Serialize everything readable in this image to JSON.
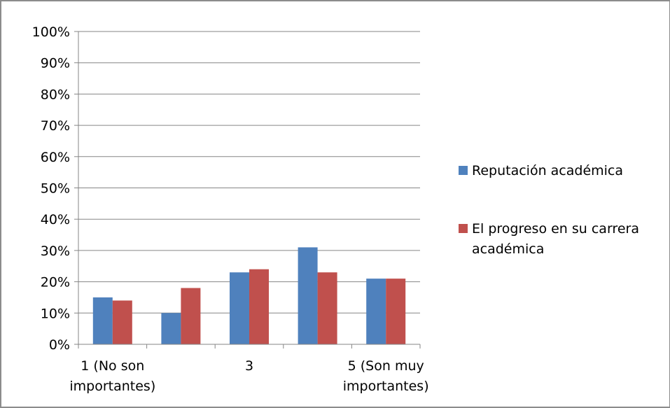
{
  "chart_data": {
    "type": "bar",
    "title": "",
    "xlabel": "",
    "ylabel": "",
    "ylim": [
      0,
      100
    ],
    "yticks": [
      0,
      10,
      20,
      30,
      40,
      50,
      60,
      70,
      80,
      90,
      100
    ],
    "ytick_labels": [
      "0%",
      "10%",
      "20%",
      "30%",
      "40%",
      "50%",
      "60%",
      "70%",
      "80%",
      "90%",
      "100%"
    ],
    "grid": true,
    "legend_position": "right",
    "categories": [
      [
        "1 (No son",
        "importantes)"
      ],
      [
        ""
      ],
      [
        "3"
      ],
      [
        ""
      ],
      [
        "5 (Son muy",
        "importantes)"
      ]
    ],
    "series": [
      {
        "name": "Reputación académica",
        "legend_lines": [
          "Reputación académica"
        ],
        "color": "#4f81bd",
        "values": [
          15,
          10,
          23,
          31,
          21
        ]
      },
      {
        "name": "El progreso en su carrera académica",
        "legend_lines": [
          "El progreso en su carrera",
          "académica"
        ],
        "color": "#c0504d",
        "values": [
          14,
          18,
          24,
          23,
          21
        ]
      }
    ]
  }
}
